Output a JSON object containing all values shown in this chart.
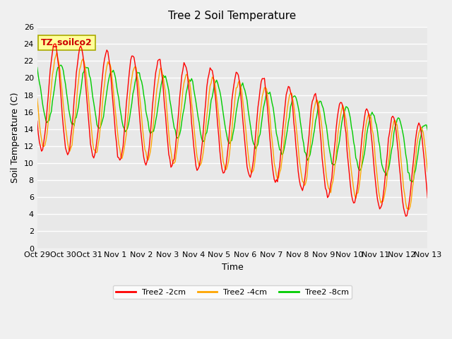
{
  "title": "Tree 2 Soil Temperature",
  "xlabel": "Time",
  "ylabel": "Soil Temperature (C)",
  "ylim": [
    0,
    26
  ],
  "yticks": [
    0,
    2,
    4,
    6,
    8,
    10,
    12,
    14,
    16,
    18,
    20,
    22,
    24,
    26
  ],
  "xtick_labels": [
    "Oct 29",
    "Oct 30",
    "Oct 31",
    "Nov 1",
    "Nov 2",
    "Nov 3",
    "Nov 4",
    "Nov 5",
    "Nov 6",
    "Nov 7",
    "Nov 8",
    "Nov 9",
    "Nov 10",
    "Nov 11",
    "Nov 12",
    "Nov 13"
  ],
  "legend_label_text": "TZ_soilco2",
  "series_labels": [
    "Tree2 -2cm",
    "Tree2 -4cm",
    "Tree2 -8cm"
  ],
  "series_colors": [
    "#ff0000",
    "#ffa500",
    "#00cc00"
  ],
  "background_color": "#f0f0f0",
  "plot_bg_color": "#e8e8e8",
  "line_width": 1.0,
  "title_fontsize": 11,
  "axis_fontsize": 9,
  "tick_fontsize": 8,
  "legend_box_color": "#ffff99",
  "legend_box_edge": "#999900"
}
